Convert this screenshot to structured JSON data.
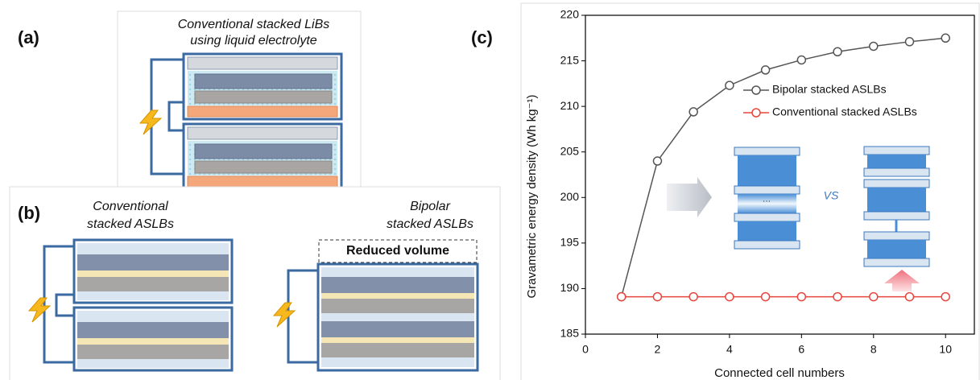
{
  "panels": {
    "a": {
      "label": "(a)",
      "title_lines": [
        "Conventional stacked LiBs",
        "using liquid electrolyte"
      ]
    },
    "b": {
      "label": "(b)",
      "left_title_lines": [
        "Conventional",
        "stacked ASLBs"
      ],
      "right_title_lines": [
        "Bipolar",
        "stacked ASLBs"
      ],
      "reduced_volume": "Reduced volume"
    }
  },
  "chart_data": {
    "type": "line",
    "panel_label": "(c)",
    "x_label": "Connected cell numbers",
    "y_label": "Gravametric energy density (Wh kg⁻¹)",
    "x": [
      1,
      2,
      3,
      4,
      5,
      6,
      7,
      8,
      9,
      10
    ],
    "series": [
      {
        "name": "Bipolar stacked ASLBs",
        "color": "#555555",
        "values": [
          189.1,
          204.0,
          209.4,
          212.3,
          214.0,
          215.1,
          216.0,
          216.6,
          217.1,
          217.5
        ]
      },
      {
        "name": "Conventional stacked ASLBs",
        "color": "#e8463c",
        "values": [
          189.1,
          189.1,
          189.1,
          189.1,
          189.1,
          189.1,
          189.1,
          189.1,
          189.1,
          189.1
        ]
      }
    ],
    "xlim": [
      0,
      10.8
    ],
    "ylim": [
      185,
      220
    ],
    "xticks": [
      0,
      2,
      4,
      6,
      8,
      10
    ],
    "yticks": [
      185,
      190,
      195,
      200,
      205,
      210,
      215,
      220
    ],
    "grid": false,
    "legend": "upper right",
    "annotations": {
      "inset_vs": "VS"
    }
  }
}
